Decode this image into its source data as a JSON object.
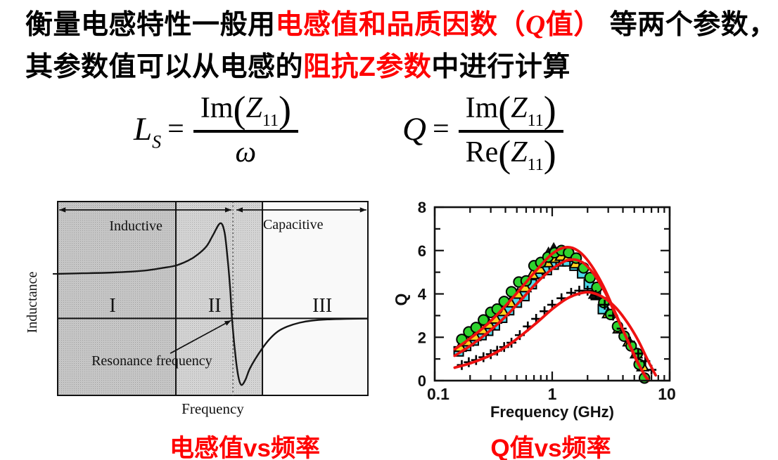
{
  "title": {
    "l1_black_lead": "衡量电感特性一般用",
    "l1_red_head": "电感值和品质因数（",
    "l1_red_q": "Q",
    "l1_red_tail": "值）",
    "l1_black_tail": "等两个参数，",
    "l2_black_lead": "其参数值可以从电感的",
    "l2_red": "阻抗Z参数",
    "l2_black_tail": "中进行计算"
  },
  "formulas": {
    "ls": {
      "lhs": "L",
      "lhs_sub": "S",
      "eq": "=",
      "num_fn": "Im",
      "open": "(",
      "var": "Z",
      "var_sub": "11",
      "close": ")",
      "den": "ω"
    },
    "q": {
      "lhs": "Q",
      "eq": "=",
      "num_fn": "Im",
      "open": "(",
      "var": "Z",
      "var_sub": "11",
      "close": ")",
      "den_fn": "Re",
      "den_open": "(",
      "den_var": "Z",
      "den_var_sub": "11",
      "den_close": ")"
    }
  },
  "captions": {
    "left": "电感值vs频率",
    "right": "Q值vs频率"
  },
  "colors": {
    "accent_red": "#ff0000",
    "curve_red": "#ee1111",
    "circle_green": "#2ed32e",
    "triangle_yellow": "#ffd21f",
    "square_cyan": "#4fd9ea",
    "halftone_gray": "#c9c9c9"
  },
  "chart_data": [
    {
      "type": "line",
      "name": "inductance-vs-frequency",
      "title": "",
      "xlabel": "Frequency",
      "ylabel": "Inductance",
      "grid": false,
      "regions": {
        "labels": [
          "I",
          "II",
          "III"
        ],
        "label_x_pct": [
          17.7,
          50.6,
          85.3
        ],
        "label_y_pct": 54,
        "boundaries_x_pct": [
          38.1,
          66.0
        ]
      },
      "zones": {
        "arrow_y_pct": 4.3,
        "inductive": {
          "label": "Inductive",
          "arrow_span_pct": [
            0.5,
            56.0
          ],
          "label_pos_pct": [
            25.2,
            12.6
          ]
        },
        "capacitive": {
          "label": "Capacitive",
          "arrow_span_pct": [
            57.6,
            99.5
          ],
          "label_pos_pct": [
            75.9,
            11.9
          ]
        }
      },
      "resonance": {
        "label": "Resonance frequency",
        "label_pos_pct": [
          10.9,
          84.5
        ],
        "arrow_from_pct": [
          36.3,
          78.3
        ],
        "arrow_to_pct": [
          55.9,
          61.3
        ],
        "dotted_x_pct": 56.5
      },
      "zero_line_y_pct": 60.3,
      "axis_tick_y_pct": 37.3,
      "curve_pct": [
        [
          0,
          37.3
        ],
        [
          8,
          37.0
        ],
        [
          18,
          36.6
        ],
        [
          28,
          35.6
        ],
        [
          34,
          34.2
        ],
        [
          38.1,
          33.0
        ],
        [
          42,
          30.5
        ],
        [
          45,
          27.5
        ],
        [
          48,
          23.0
        ],
        [
          50,
          17.5
        ],
        [
          52.4,
          11.2
        ],
        [
          53.8,
          16.0
        ],
        [
          54.8,
          30.0
        ],
        [
          55.6,
          45.0
        ],
        [
          56.2,
          60.3
        ],
        [
          57.2,
          78.0
        ],
        [
          58.2,
          90.0
        ],
        [
          59.2,
          94.6
        ],
        [
          60.5,
          92.0
        ],
        [
          62,
          86.0
        ],
        [
          65,
          78.0
        ],
        [
          68,
          71.5
        ],
        [
          71,
          67.0
        ],
        [
          74,
          64.5
        ],
        [
          78,
          62.5
        ],
        [
          82,
          61.4
        ],
        [
          87,
          60.8
        ],
        [
          93,
          60.5
        ],
        [
          100,
          60.4
        ]
      ]
    },
    {
      "type": "scatter",
      "name": "q-vs-frequency",
      "title": "",
      "xlabel": "Frequency (GHz)",
      "ylabel": "Q",
      "xscale": "log",
      "xlim": [
        0.1,
        10
      ],
      "ylim": [
        0,
        8
      ],
      "xticks": [
        0.1,
        1,
        10
      ],
      "xtick_labels": [
        "0.1",
        "1",
        "10"
      ],
      "yticks": [
        0,
        2,
        4,
        6,
        8
      ],
      "grid": false,
      "legend": "none",
      "series": [
        {
          "name": "squares",
          "marker": "square",
          "fill": "#4fd9ea",
          "points": [
            [
              0.16,
              1.35
            ],
            [
              0.185,
              1.6
            ],
            [
              0.215,
              1.85
            ],
            [
              0.25,
              2.1
            ],
            [
              0.285,
              2.3
            ],
            [
              0.325,
              2.55
            ],
            [
              0.375,
              2.9
            ],
            [
              0.43,
              3.25
            ],
            [
              0.5,
              3.6
            ],
            [
              0.58,
              3.9
            ],
            [
              0.67,
              4.45
            ],
            [
              0.78,
              4.95
            ],
            [
              0.9,
              5.1
            ],
            [
              1.03,
              5.35
            ],
            [
              1.18,
              5.5
            ],
            [
              1.35,
              5.5
            ],
            [
              1.55,
              5.3
            ],
            [
              1.8,
              4.95
            ],
            [
              2.05,
              4.45
            ],
            [
              2.35,
              3.95
            ],
            [
              2.7,
              3.3
            ]
          ]
        },
        {
          "name": "triangles",
          "marker": "triangle",
          "fill": "#ffd21f",
          "points": [
            [
              0.165,
              1.55
            ],
            [
              0.19,
              1.8
            ],
            [
              0.22,
              2.05
            ],
            [
              0.255,
              2.35
            ],
            [
              0.29,
              2.6
            ],
            [
              0.33,
              2.85
            ],
            [
              0.38,
              3.2
            ],
            [
              0.44,
              3.6
            ],
            [
              0.51,
              4.0
            ],
            [
              0.59,
              4.3
            ],
            [
              0.68,
              4.9
            ],
            [
              0.79,
              5.15
            ],
            [
              0.91,
              5.45
            ],
            [
              1.04,
              5.65
            ],
            [
              1.19,
              5.75
            ],
            [
              1.37,
              5.7
            ],
            [
              1.58,
              5.4
            ],
            [
              2.3,
              4.0
            ],
            [
              3.0,
              3.1
            ],
            [
              3.7,
              2.4
            ],
            [
              4.5,
              1.8
            ],
            [
              5.2,
              1.25
            ],
            [
              5.9,
              0.65
            ]
          ]
        },
        {
          "name": "black-triangles",
          "marker": "triangle-large",
          "fill": "#111111",
          "points": [
            [
              0.93,
              5.9
            ],
            [
              1.03,
              6.1
            ],
            [
              2.35,
              4.05
            ]
          ]
        },
        {
          "name": "circles",
          "marker": "circle",
          "fill": "#2ed32e",
          "points": [
            [
              0.17,
              1.9
            ],
            [
              0.195,
              2.25
            ],
            [
              0.225,
              2.45
            ],
            [
              0.26,
              2.8
            ],
            [
              0.3,
              3.15
            ],
            [
              0.34,
              3.3
            ],
            [
              0.39,
              3.65
            ],
            [
              0.45,
              4.1
            ],
            [
              0.52,
              4.55
            ],
            [
              0.6,
              4.6
            ],
            [
              0.7,
              5.3
            ],
            [
              0.8,
              5.45
            ],
            [
              0.92,
              5.7
            ],
            [
              1.05,
              5.9
            ],
            [
              1.2,
              6.0
            ],
            [
              1.38,
              5.9
            ],
            [
              1.6,
              5.65
            ],
            [
              1.85,
              5.2
            ],
            [
              2.1,
              4.75
            ],
            [
              2.4,
              4.3
            ],
            [
              2.75,
              3.6
            ],
            [
              3.15,
              3.05
            ],
            [
              3.6,
              2.5
            ],
            [
              4.1,
              2.05
            ],
            [
              4.7,
              1.6
            ],
            [
              5.3,
              1.25
            ],
            [
              5.5,
              0.75
            ],
            [
              6.1,
              0.12
            ]
          ]
        },
        {
          "name": "plus",
          "marker": "plus",
          "fill": "#111111",
          "points": [
            [
              0.17,
              0.72
            ],
            [
              0.195,
              0.85
            ],
            [
              0.225,
              0.95
            ],
            [
              0.26,
              1.08
            ],
            [
              0.3,
              1.22
            ],
            [
              0.34,
              1.38
            ],
            [
              0.39,
              1.55
            ],
            [
              0.45,
              1.75
            ],
            [
              0.53,
              2.1
            ],
            [
              0.62,
              2.5
            ],
            [
              0.73,
              2.85
            ],
            [
              0.86,
              3.2
            ],
            [
              1.0,
              3.5
            ],
            [
              1.2,
              3.8
            ],
            [
              1.45,
              4.05
            ],
            [
              1.7,
              4.15
            ],
            [
              2.0,
              4.15
            ],
            [
              2.35,
              3.95
            ],
            [
              2.8,
              3.5
            ],
            [
              3.3,
              3.0
            ],
            [
              3.9,
              2.4
            ],
            [
              4.6,
              1.8
            ],
            [
              5.4,
              1.25
            ],
            [
              6.2,
              0.9
            ],
            [
              7.0,
              0.5
            ]
          ]
        }
      ],
      "fit_curves": {
        "color": "#ee1111",
        "curves": [
          [
            [
              0.148,
              1.45
            ],
            [
              0.2,
              1.95
            ],
            [
              0.28,
              2.6
            ],
            [
              0.4,
              3.45
            ],
            [
              0.55,
              4.3
            ],
            [
              0.75,
              5.15
            ],
            [
              1.0,
              5.85
            ],
            [
              1.3,
              6.15
            ],
            [
              1.65,
              6.0
            ],
            [
              2.1,
              5.4
            ],
            [
              2.7,
              4.4
            ],
            [
              3.4,
              3.2
            ],
            [
              4.3,
              1.95
            ],
            [
              5.2,
              0.95
            ],
            [
              6.0,
              0.35
            ],
            [
              6.6,
              0.02
            ]
          ],
          [
            [
              0.148,
              1.15
            ],
            [
              0.2,
              1.6
            ],
            [
              0.28,
              2.2
            ],
            [
              0.4,
              2.95
            ],
            [
              0.55,
              3.75
            ],
            [
              0.75,
              4.55
            ],
            [
              1.0,
              5.15
            ],
            [
              1.35,
              5.55
            ],
            [
              1.75,
              5.5
            ],
            [
              2.2,
              5.0
            ],
            [
              2.8,
              4.1
            ],
            [
              3.5,
              3.0
            ],
            [
              4.4,
              1.85
            ],
            [
              5.3,
              0.9
            ],
            [
              6.1,
              0.25
            ],
            [
              6.6,
              0.0
            ]
          ],
          [
            [
              0.148,
              0.6
            ],
            [
              0.2,
              0.8
            ],
            [
              0.28,
              1.1
            ],
            [
              0.4,
              1.55
            ],
            [
              0.55,
              2.1
            ],
            [
              0.75,
              2.7
            ],
            [
              1.0,
              3.3
            ],
            [
              1.35,
              3.8
            ],
            [
              1.8,
              4.05
            ],
            [
              2.2,
              4.05
            ],
            [
              2.8,
              3.8
            ],
            [
              3.5,
              3.35
            ],
            [
              4.4,
              2.65
            ],
            [
              5.4,
              1.85
            ],
            [
              6.5,
              0.95
            ],
            [
              7.6,
              0.25
            ]
          ]
        ]
      }
    }
  ]
}
